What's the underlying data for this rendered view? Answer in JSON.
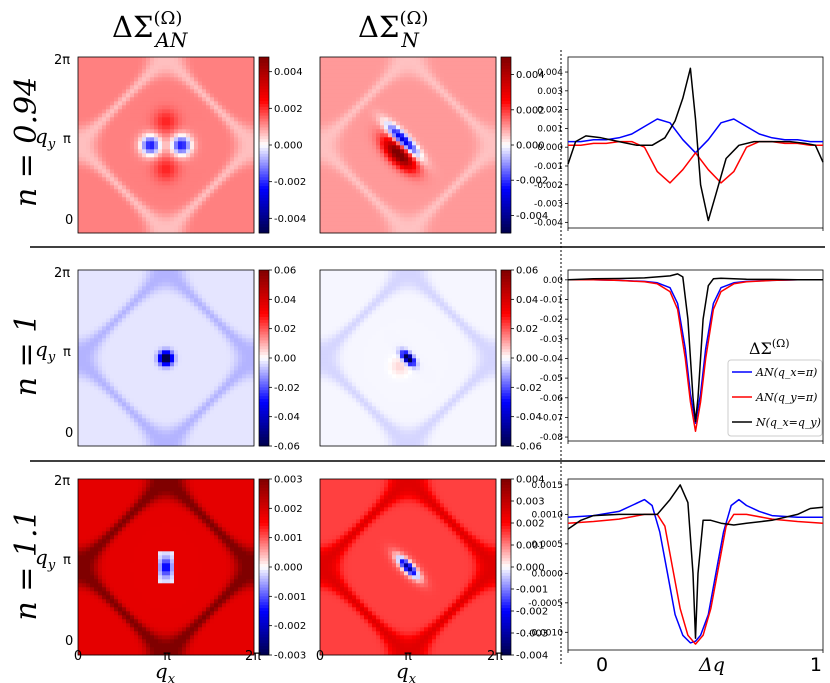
{
  "column_headers": {
    "an": {
      "base": "ΔΣ",
      "sup": "(Ω)",
      "sub": "AN"
    },
    "n": {
      "base": "ΔΣ",
      "sup": "(Ω)",
      "sub": "N"
    }
  },
  "row_labels": [
    "n = 0.94",
    "n = 1",
    "n = 1.1"
  ],
  "heatmap_axes": {
    "y_ticks": [
      "2π",
      "π",
      "0"
    ],
    "y_label": "q_y",
    "x_ticks": [
      "0",
      "π",
      "2π"
    ],
    "x_label": "q_x"
  },
  "line_axes": {
    "x_ticks": [
      "0",
      "1"
    ],
    "x_label": "Δq"
  },
  "legend": {
    "title": "ΔΣ^(Ω)",
    "entries": [
      {
        "label": "AN(q_x=π)",
        "color": "#0000ff"
      },
      {
        "label": "AN(q_y=π)",
        "color": "#ff0000"
      },
      {
        "label": "N(q_x=q_y)",
        "color": "#000000"
      }
    ]
  },
  "chart_data": [
    {
      "type": "heatmap",
      "row": 0,
      "col": 0,
      "quantity": "ΔΣ_AN^(Ω)",
      "n": 0.94,
      "colormap": "seismic",
      "vmin": -0.0048,
      "vmax": 0.0048,
      "colorbar_ticks": [
        "0.004",
        "0.002",
        "0.000",
        "-0.002",
        "-0.004"
      ],
      "colorbar_tick_values": [
        0.004,
        0.002,
        0.0,
        -0.002,
        -0.004
      ],
      "pattern": "an",
      "params": {
        "bg": 0.0012,
        "arcs": -0.0006,
        "center": -0.0035,
        "side": 0.0018
      }
    },
    {
      "type": "heatmap",
      "row": 0,
      "col": 1,
      "quantity": "ΔΣ_N^(Ω)",
      "n": 0.94,
      "colormap": "seismic",
      "vmin": -0.005,
      "vmax": 0.005,
      "colorbar_ticks": [
        "0.004",
        "0.002",
        "0.000",
        "-0.002",
        "-0.004"
      ],
      "colorbar_tick_values": [
        0.004,
        0.002,
        0.0,
        -0.002,
        -0.004
      ],
      "pattern": "n",
      "params": {
        "bg": 0.001,
        "arcs": -0.0004,
        "center": -0.0045,
        "lobe": 0.0045
      }
    },
    {
      "type": "line",
      "row": 0,
      "col": 2,
      "n": 0.94,
      "xlim": [
        0,
        1
      ],
      "ylim": [
        -0.0043,
        0.0048
      ],
      "y_ticks": [
        "0.004",
        "0.003",
        "0.002",
        "0.001",
        "0.000",
        "-0.001",
        "-0.002",
        "-0.003",
        "-0.004"
      ],
      "y_tick_values": [
        0.004,
        0.003,
        0.002,
        0.001,
        0.0,
        -0.001,
        -0.002,
        -0.003,
        -0.004
      ],
      "series": [
        {
          "color": "#0000ff",
          "x": [
            0,
            0.05,
            0.1,
            0.15,
            0.2,
            0.25,
            0.3,
            0.35,
            0.4,
            0.45,
            0.5,
            0.55,
            0.6,
            0.65,
            0.7,
            0.75,
            0.8,
            0.85,
            0.9,
            0.95,
            1.0
          ],
          "y": [
            0.0003,
            0.0003,
            0.0004,
            0.0004,
            0.0005,
            0.0007,
            0.0011,
            0.0015,
            0.0013,
            0.0004,
            -0.0003,
            0.0004,
            0.0013,
            0.0015,
            0.0011,
            0.0007,
            0.0005,
            0.0004,
            0.0004,
            0.0003,
            0.0003
          ]
        },
        {
          "color": "#ff0000",
          "x": [
            0,
            0.05,
            0.1,
            0.15,
            0.2,
            0.25,
            0.3,
            0.35,
            0.4,
            0.45,
            0.5,
            0.55,
            0.6,
            0.65,
            0.7,
            0.75,
            0.8,
            0.85,
            0.9,
            0.95,
            1.0
          ],
          "y": [
            0.0001,
            0.0001,
            0.0002,
            0.0002,
            0.0003,
            0.0003,
            0.0,
            -0.0013,
            -0.0019,
            -0.0012,
            -0.0003,
            -0.0012,
            -0.0019,
            -0.0013,
            0.0,
            0.0003,
            0.0003,
            0.0002,
            0.0002,
            0.0001,
            0.0001
          ]
        },
        {
          "color": "#000000",
          "x": [
            0,
            0.03,
            0.07,
            0.13,
            0.2,
            0.27,
            0.33,
            0.38,
            0.42,
            0.45,
            0.48,
            0.5,
            0.52,
            0.55,
            0.58,
            0.62,
            0.67,
            0.73,
            0.8,
            0.87,
            0.93,
            0.97,
            1.0
          ],
          "y": [
            -0.0009,
            0.0003,
            0.0006,
            0.0005,
            0.0003,
            0.0001,
            0.0001,
            0.0005,
            0.0014,
            0.0026,
            0.0042,
            0.0015,
            -0.002,
            -0.0039,
            -0.0025,
            -0.0006,
            0.0001,
            0.0003,
            0.0003,
            0.0003,
            0.0002,
            0.0001,
            -0.0008
          ]
        }
      ]
    },
    {
      "type": "heatmap",
      "row": 1,
      "col": 0,
      "quantity": "ΔΣ_AN^(Ω)",
      "n": 1,
      "colormap": "seismic",
      "vmin": -0.06,
      "vmax": 0.06,
      "colorbar_ticks": [
        "0.06",
        "0.04",
        "0.02",
        "0.00",
        "-0.02",
        "-0.04",
        "-0.06"
      ],
      "colorbar_tick_values": [
        0.06,
        0.04,
        0.02,
        0.0,
        -0.02,
        -0.04,
        -0.06
      ],
      "pattern": "an1",
      "params": {
        "bg": -0.003,
        "arcs": -0.006,
        "center": -0.075
      }
    },
    {
      "type": "heatmap",
      "row": 1,
      "col": 1,
      "quantity": "ΔΣ_N^(Ω)",
      "n": 1,
      "colormap": "seismic",
      "vmin": -0.06,
      "vmax": 0.06,
      "colorbar_ticks": [
        "0.06",
        "0.04",
        "0.02",
        "0.00",
        "-0.02",
        "-0.04",
        "-0.06"
      ],
      "colorbar_tick_values": [
        0.06,
        0.04,
        0.02,
        0.0,
        -0.02,
        -0.04,
        -0.06
      ],
      "pattern": "n1",
      "params": {
        "bg": -0.001,
        "arcs": -0.004,
        "center": -0.07,
        "lobe": 0.006
      }
    },
    {
      "type": "line",
      "row": 1,
      "col": 2,
      "n": 1,
      "xlim": [
        0,
        1
      ],
      "ylim": [
        -0.082,
        0.005
      ],
      "y_ticks": [
        "0.00",
        "-0.01",
        "-0.02",
        "-0.03",
        "-0.04",
        "-0.05",
        "-0.06",
        "-0.07",
        "-0.08"
      ],
      "y_tick_values": [
        0.0,
        -0.01,
        -0.02,
        -0.03,
        -0.04,
        -0.05,
        -0.06,
        -0.07,
        -0.08
      ],
      "series": [
        {
          "color": "#0000ff",
          "x": [
            0,
            0.1,
            0.2,
            0.3,
            0.35,
            0.4,
            0.43,
            0.46,
            0.48,
            0.5,
            0.52,
            0.54,
            0.57,
            0.6,
            0.65,
            0.7,
            0.8,
            0.9,
            1.0
          ],
          "y": [
            0.0,
            0.0,
            -0.0003,
            -0.0008,
            -0.0015,
            -0.004,
            -0.012,
            -0.035,
            -0.058,
            -0.073,
            -0.058,
            -0.035,
            -0.012,
            -0.004,
            -0.0015,
            -0.0008,
            -0.0003,
            0.0,
            0.0
          ]
        },
        {
          "color": "#ff0000",
          "x": [
            0,
            0.1,
            0.2,
            0.3,
            0.35,
            0.4,
            0.43,
            0.46,
            0.48,
            0.5,
            0.52,
            0.54,
            0.57,
            0.6,
            0.65,
            0.7,
            0.8,
            0.9,
            1.0
          ],
          "y": [
            0.0,
            0.0,
            -0.0003,
            -0.001,
            -0.002,
            -0.006,
            -0.015,
            -0.04,
            -0.062,
            -0.077,
            -0.062,
            -0.04,
            -0.015,
            -0.006,
            -0.002,
            -0.001,
            -0.0003,
            0.0,
            0.0
          ]
        },
        {
          "color": "#000000",
          "x": [
            0,
            0.1,
            0.2,
            0.3,
            0.35,
            0.4,
            0.43,
            0.45,
            0.47,
            0.49,
            0.5,
            0.51,
            0.53,
            0.55,
            0.57,
            0.6,
            0.65,
            0.7,
            0.8,
            0.9,
            1.0
          ],
          "y": [
            0.0,
            0.0005,
            0.0007,
            0.001,
            0.0015,
            0.002,
            0.003,
            0.0015,
            -0.02,
            -0.06,
            -0.072,
            -0.06,
            -0.02,
            -0.003,
            0.0005,
            0.0008,
            0.0005,
            0.0003,
            0.0002,
            0.0,
            0.0
          ]
        }
      ]
    },
    {
      "type": "heatmap",
      "row": 2,
      "col": 0,
      "quantity": "ΔΣ_AN^(Ω)",
      "n": 1.1,
      "colormap": "seismic",
      "vmin": -0.003,
      "vmax": 0.003,
      "colorbar_ticks": [
        "0.003",
        "0.002",
        "0.001",
        "0.000",
        "-0.001",
        "-0.002",
        "-0.003"
      ],
      "colorbar_tick_values": [
        0.003,
        0.002,
        0.001,
        0.0,
        -0.001,
        -0.002,
        -0.003
      ],
      "pattern": "an11",
      "params": {
        "bg": 0.0018,
        "arcs": 0.0013,
        "center": -0.0016
      }
    },
    {
      "type": "heatmap",
      "row": 2,
      "col": 1,
      "quantity": "ΔΣ_N^(Ω)",
      "n": 1.1,
      "colormap": "seismic",
      "vmin": -0.004,
      "vmax": 0.004,
      "colorbar_ticks": [
        "0.004",
        "0.003",
        "0.002",
        "0.001",
        "0.000",
        "-0.001",
        "-0.002",
        "-0.003",
        "-0.004"
      ],
      "colorbar_tick_values": [
        0.004,
        0.003,
        0.002,
        0.001,
        0.0,
        -0.001,
        -0.002,
        -0.003,
        -0.004
      ],
      "pattern": "n11",
      "params": {
        "bg": 0.0015,
        "arcs": 0.001,
        "center": -0.0033,
        "lobe": 0.0
      }
    },
    {
      "type": "line",
      "row": 2,
      "col": 2,
      "n": 1.1,
      "xlim": [
        0,
        1
      ],
      "ylim": [
        -0.0013,
        0.0016
      ],
      "y_ticks": [
        "0.0015",
        "0.0010",
        "0.0005",
        "0.0000",
        "-0.0005",
        "-0.0010"
      ],
      "y_tick_values": [
        0.0015,
        0.001,
        0.0005,
        0.0,
        -0.0005,
        -0.001
      ],
      "series": [
        {
          "color": "#0000ff",
          "x": [
            0,
            0.1,
            0.2,
            0.25,
            0.3,
            0.33,
            0.36,
            0.39,
            0.42,
            0.45,
            0.48,
            0.5,
            0.52,
            0.55,
            0.58,
            0.61,
            0.64,
            0.67,
            0.7,
            0.75,
            0.8,
            0.9,
            1.0
          ],
          "y": [
            0.00095,
            0.00098,
            0.00105,
            0.00115,
            0.00125,
            0.00115,
            0.0007,
            0.0,
            -0.0007,
            -0.00105,
            -0.00118,
            -0.00115,
            -0.00105,
            -0.0007,
            0.0,
            0.0007,
            0.00115,
            0.00125,
            0.00115,
            0.00105,
            0.00098,
            0.00095,
            0.00095
          ]
        },
        {
          "color": "#ff0000",
          "x": [
            0,
            0.1,
            0.2,
            0.3,
            0.35,
            0.38,
            0.41,
            0.44,
            0.47,
            0.5,
            0.53,
            0.56,
            0.59,
            0.62,
            0.65,
            0.7,
            0.8,
            0.9,
            1.0
          ],
          "y": [
            0.00085,
            0.00088,
            0.00092,
            0.001,
            0.001,
            0.0008,
            0.0001,
            -0.0006,
            -0.00105,
            -0.0012,
            -0.00105,
            -0.0006,
            0.0001,
            0.0008,
            0.001,
            0.001,
            0.00092,
            0.00088,
            0.00085
          ]
        },
        {
          "color": "#000000",
          "x": [
            0,
            0.05,
            0.1,
            0.2,
            0.3,
            0.35,
            0.4,
            0.44,
            0.47,
            0.49,
            0.5,
            0.51,
            0.53,
            0.56,
            0.6,
            0.65,
            0.7,
            0.8,
            0.9,
            0.95,
            1.0
          ],
          "y": [
            0.00075,
            0.0009,
            0.00098,
            0.001,
            0.001,
            0.001,
            0.00125,
            0.0015,
            0.0012,
            0.0,
            -0.0011,
            0.0,
            0.0009,
            0.0009,
            0.00085,
            0.00082,
            0.00085,
            0.0009,
            0.001,
            0.0011,
            0.00112
          ]
        }
      ]
    }
  ]
}
